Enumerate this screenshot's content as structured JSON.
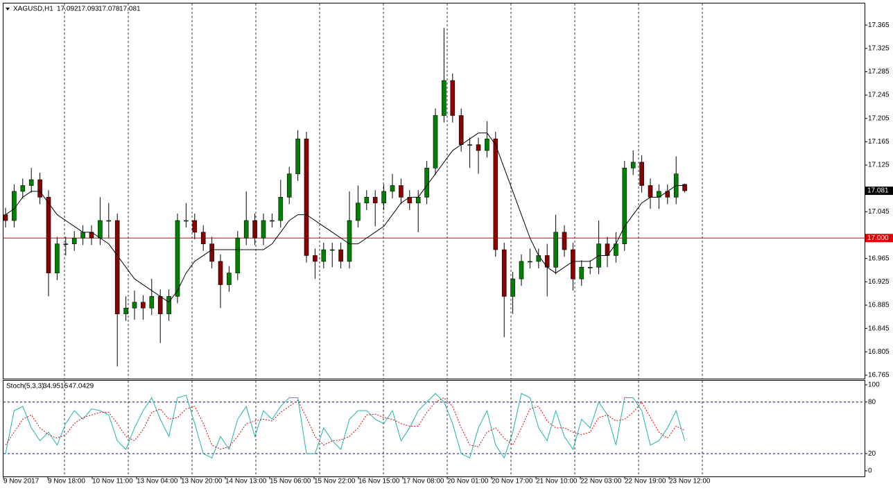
{
  "chart_data": [
    {
      "type": "candlestick",
      "title": "XAGUSD,H1",
      "open": [
        17.04,
        17.03,
        17.08,
        17.09,
        17.1,
        17.07,
        16.94,
        16.99,
        16.99,
        17.0,
        17.01,
        17.0,
        17.03,
        17.03,
        16.87,
        16.88,
        16.89,
        16.88,
        16.9,
        16.87,
        16.9,
        17.03,
        17.03,
        17.01,
        16.99,
        16.96,
        16.92,
        16.94,
        17.0,
        17.03,
        17.0,
        17.03,
        17.03,
        17.07,
        17.11,
        17.17,
        16.97,
        16.96,
        16.98,
        16.98,
        16.96,
        17.03,
        17.06,
        17.07,
        17.06,
        17.08,
        17.09,
        17.07,
        17.06,
        17.07,
        17.12,
        17.21,
        17.27,
        17.21,
        17.16,
        17.16,
        17.15,
        17.17,
        16.98,
        16.9,
        16.93,
        16.96,
        16.96,
        16.97,
        16.95,
        17.01,
        16.98,
        16.93,
        16.95,
        16.95,
        16.99,
        16.97,
        16.99,
        17.12,
        17.13,
        17.09,
        17.07,
        17.08,
        17.07,
        17.092
      ],
      "high": [
        17.052,
        17.092,
        17.102,
        17.12,
        17.112,
        17.082,
        17.002,
        17.002,
        17.012,
        17.022,
        17.022,
        17.07,
        17.06,
        17.042,
        16.9,
        16.91,
        16.902,
        16.93,
        16.912,
        16.912,
        17.042,
        17.06,
        17.042,
        17.022,
        17.002,
        16.972,
        16.952,
        17.012,
        17.08,
        17.042,
        17.042,
        17.042,
        17.1,
        17.122,
        17.185,
        17.182,
        16.982,
        16.992,
        16.992,
        16.992,
        17.08,
        17.09,
        17.082,
        17.082,
        17.092,
        17.11,
        17.102,
        17.082,
        17.082,
        17.132,
        17.222,
        17.36,
        17.282,
        17.222,
        17.172,
        17.172,
        17.2,
        17.182,
        16.992,
        16.942,
        16.972,
        16.982,
        16.982,
        16.99,
        17.04,
        17.022,
        16.992,
        16.962,
        16.962,
        17.03,
        17.002,
        17.01,
        17.132,
        17.15,
        17.142,
        17.102,
        17.092,
        17.092,
        17.14,
        17.093
      ],
      "low": [
        17.018,
        17.018,
        17.068,
        17.078,
        17.058,
        16.9,
        16.928,
        16.97,
        16.978,
        16.988,
        16.988,
        16.988,
        17.0,
        16.78,
        16.858,
        16.86,
        16.86,
        16.868,
        16.82,
        16.858,
        16.888,
        17.018,
        16.998,
        16.978,
        16.948,
        16.88,
        16.908,
        16.928,
        16.988,
        16.988,
        16.988,
        17.018,
        17.018,
        17.058,
        17.098,
        16.958,
        16.93,
        16.948,
        16.95,
        16.948,
        16.948,
        17.018,
        17.048,
        17.02,
        17.048,
        17.068,
        17.058,
        17.048,
        17.01,
        17.058,
        17.108,
        17.198,
        17.198,
        17.148,
        17.12,
        17.11,
        17.138,
        16.968,
        16.83,
        16.87,
        16.918,
        16.948,
        16.948,
        16.9,
        16.938,
        16.968,
        16.91,
        16.918,
        16.938,
        16.938,
        16.95,
        16.958,
        16.978,
        17.108,
        17.078,
        17.05,
        17.05,
        17.058,
        17.058,
        17.078
      ],
      "close": [
        17.03,
        17.08,
        17.09,
        17.1,
        17.07,
        16.94,
        16.99,
        16.99,
        17.0,
        17.01,
        17.0,
        17.03,
        17.03,
        16.87,
        16.88,
        16.89,
        16.88,
        16.9,
        16.87,
        16.9,
        17.03,
        17.03,
        17.01,
        16.99,
        16.96,
        16.92,
        16.94,
        17.0,
        17.03,
        17.0,
        17.03,
        17.03,
        17.07,
        17.11,
        17.17,
        16.97,
        16.96,
        16.98,
        16.98,
        16.96,
        17.03,
        17.06,
        17.07,
        17.06,
        17.08,
        17.09,
        17.07,
        17.06,
        17.07,
        17.12,
        17.21,
        17.27,
        17.21,
        17.16,
        17.16,
        17.15,
        17.17,
        16.98,
        16.9,
        16.93,
        16.96,
        16.96,
        16.97,
        16.95,
        17.01,
        16.98,
        16.93,
        16.95,
        16.95,
        16.99,
        16.97,
        16.99,
        17.12,
        17.13,
        17.09,
        17.07,
        17.08,
        17.07,
        17.11,
        17.081
      ],
      "ma": {
        "color": "#000000",
        "values": [
          17.04,
          17.05,
          17.07,
          17.08,
          17.08,
          17.06,
          17.04,
          17.03,
          17.02,
          17.01,
          17.01,
          17.0,
          16.99,
          16.97,
          16.95,
          16.93,
          16.92,
          16.91,
          16.9,
          16.89,
          16.91,
          16.94,
          16.96,
          16.97,
          16.98,
          16.98,
          16.98,
          16.98,
          16.98,
          16.98,
          16.98,
          16.99,
          17.01,
          17.03,
          17.04,
          17.04,
          17.03,
          17.02,
          17.01,
          17.0,
          16.99,
          16.99,
          17.0,
          17.01,
          17.02,
          17.04,
          17.06,
          17.07,
          17.07,
          17.09,
          17.11,
          17.13,
          17.15,
          17.16,
          17.17,
          17.18,
          17.18,
          17.16,
          17.12,
          17.08,
          17.04,
          17.0,
          16.97,
          16.95,
          16.94,
          16.95,
          16.96,
          16.96,
          16.96,
          16.97,
          16.97,
          16.99,
          17.02,
          17.04,
          17.06,
          17.07,
          17.07,
          17.08,
          17.09,
          17.09
        ]
      },
      "level": {
        "value": 17,
        "label": "17.000",
        "color": "#e00000"
      },
      "bull_color": "#008000",
      "bear_color": "#8b0000",
      "grid": true,
      "ylim": [
        16.759,
        17.402
      ],
      "yticks": [
        17.365,
        17.325,
        17.285,
        17.245,
        17.205,
        17.165,
        17.125,
        17.045,
        16.965,
        16.925,
        16.885,
        16.845,
        16.805,
        16.765
      ],
      "x_labels": [
        "9 Nov 2017",
        "9 Nov 18:00",
        "10 Nov 11:00",
        "13 Nov 04:00",
        "13 Nov 20:00",
        "14 Nov 13:00",
        "15 Nov 06:00",
        "15 Nov 22:00",
        "16 Nov 15:00",
        "17 Nov 08:00",
        "20 Nov 01:00",
        "20 Nov 17:00",
        "21 Nov 10:00",
        "22 Nov 03:00",
        "22 Nov 19:00",
        "23 Nov 12:00"
      ]
    },
    {
      "type": "stochastic",
      "title": "Stoch(5,3,3)",
      "series": [
        {
          "color": "#20b2aa",
          "values": [
            20,
            70,
            75,
            50,
            35,
            45,
            30,
            55,
            70,
            60,
            72,
            70,
            65,
            35,
            25,
            50,
            70,
            85,
            60,
            40,
            85,
            88,
            55,
            20,
            15,
            40,
            25,
            60,
            75,
            40,
            70,
            60,
            75,
            85,
            85,
            20,
            20,
            50,
            35,
            25,
            60,
            70,
            70,
            60,
            55,
            70,
            35,
            50,
            70,
            80,
            90,
            80,
            55,
            20,
            15,
            50,
            70,
            30,
            15,
            45,
            90,
            85,
            50,
            35,
            70,
            40,
            25,
            60,
            50,
            80,
            65,
            30,
            85,
            85,
            70,
            30,
            35,
            50,
            70,
            34.9515
          ]
        },
        {
          "color": "#e00000",
          "dashed": true,
          "values": [
            30,
            45,
            60,
            65,
            50,
            42,
            38,
            42,
            55,
            62,
            65,
            68,
            68,
            55,
            40,
            35,
            48,
            68,
            72,
            60,
            62,
            72,
            75,
            55,
            30,
            25,
            28,
            40,
            55,
            58,
            60,
            58,
            68,
            75,
            82,
            62,
            40,
            30,
            35,
            36,
            40,
            50,
            65,
            66,
            62,
            60,
            55,
            52,
            52,
            68,
            80,
            85,
            75,
            50,
            30,
            28,
            45,
            50,
            38,
            30,
            50,
            72,
            75,
            58,
            50,
            50,
            45,
            42,
            45,
            62,
            65,
            58,
            60,
            68,
            80,
            62,
            45,
            38,
            52,
            47.0429
          ]
        }
      ],
      "ylim": [
        -6.5,
        104.8
      ],
      "yticks": [
        0,
        20,
        80,
        100
      ],
      "levels": [
        80,
        20
      ]
    }
  ]
}
